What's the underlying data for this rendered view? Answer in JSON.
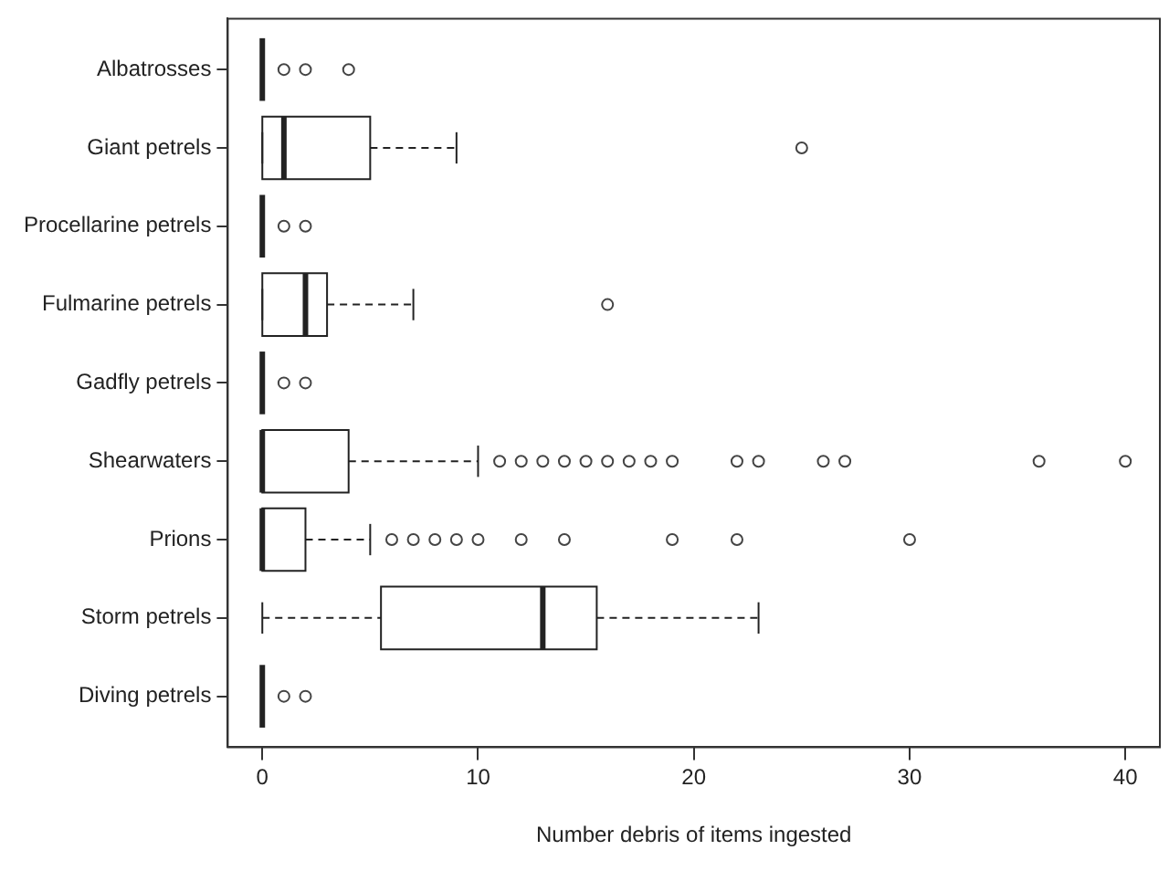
{
  "chart_data": {
    "type": "box",
    "orientation": "horizontal",
    "xlabel": "Number debris of items ingested",
    "categories": [
      "Albatrosses",
      "Giant petrels",
      "Procellarine petrels",
      "Fulmarine petrels",
      "Gadfly petrels",
      "Shearwaters",
      "Prions",
      "Storm petrels",
      "Diving petrels"
    ],
    "boxes": [
      {
        "low": 0,
        "q1": 0,
        "median": 0,
        "q3": 0,
        "high": 0,
        "outliers": [
          1,
          2,
          4
        ]
      },
      {
        "low": 0,
        "q1": 0,
        "median": 1,
        "q3": 5,
        "high": 9,
        "outliers": [
          25
        ]
      },
      {
        "low": 0,
        "q1": 0,
        "median": 0,
        "q3": 0,
        "high": 0,
        "outliers": [
          1,
          2
        ]
      },
      {
        "low": 0,
        "q1": 0,
        "median": 2,
        "q3": 3,
        "high": 7,
        "outliers": [
          16
        ]
      },
      {
        "low": 0,
        "q1": 0,
        "median": 0,
        "q3": 0,
        "high": 0,
        "outliers": [
          1,
          2
        ]
      },
      {
        "low": 0,
        "q1": 0,
        "median": 0,
        "q3": 4,
        "high": 10,
        "outliers": [
          11,
          12,
          13,
          14,
          15,
          16,
          17,
          18,
          19,
          22,
          23,
          26,
          27,
          36,
          40
        ]
      },
      {
        "low": 0,
        "q1": 0,
        "median": 0,
        "q3": 2,
        "high": 5,
        "outliers": [
          6,
          7,
          8,
          9,
          10,
          12,
          14,
          19,
          22,
          30
        ]
      },
      {
        "low": 0,
        "q1": 5.5,
        "median": 13,
        "q3": 15.5,
        "high": 23
      },
      {
        "low": 0,
        "q1": 0,
        "median": 0,
        "q3": 0,
        "high": 0,
        "outliers": [
          1,
          2
        ]
      }
    ],
    "xlim": [
      -1.6,
      41.6
    ],
    "xticks": [
      0,
      10,
      20,
      30,
      40
    ],
    "grid": false,
    "legend": false
  }
}
